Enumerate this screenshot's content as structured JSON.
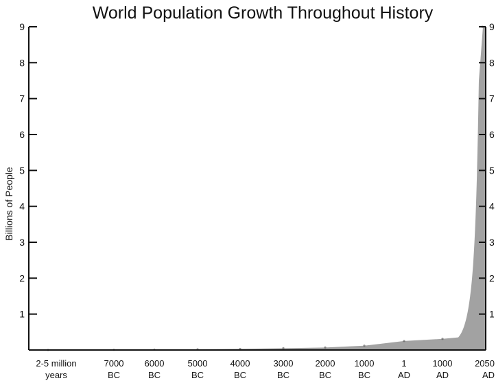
{
  "chart_data": {
    "type": "area",
    "title": "World Population Growth Throughout History",
    "xlabel": "",
    "ylabel": "Billions of People",
    "ylim": [
      0,
      9
    ],
    "yticks": [
      1,
      2,
      3,
      4,
      5,
      6,
      7,
      8,
      9
    ],
    "right_axis_ticks": [
      1,
      2,
      3,
      4,
      5,
      6,
      7,
      8,
      9
    ],
    "grid": false,
    "legend": "none",
    "fill_color": "#555555",
    "categories": [
      [
        "2-5 million",
        "years"
      ],
      [
        "7000",
        "BC"
      ],
      [
        "6000",
        "BC"
      ],
      [
        "5000",
        "BC"
      ],
      [
        "4000",
        "BC"
      ],
      [
        "3000",
        "BC"
      ],
      [
        "2000",
        "BC"
      ],
      [
        "1000",
        "BC"
      ],
      [
        "1",
        "AD"
      ],
      [
        "1000",
        "AD"
      ],
      [
        "2050",
        "AD"
      ]
    ],
    "series": [
      {
        "values": [
          0.0,
          0.005,
          0.01,
          0.02,
          0.03,
          0.05,
          0.07,
          0.12,
          0.25,
          0.31,
          9.0
        ]
      }
    ]
  }
}
